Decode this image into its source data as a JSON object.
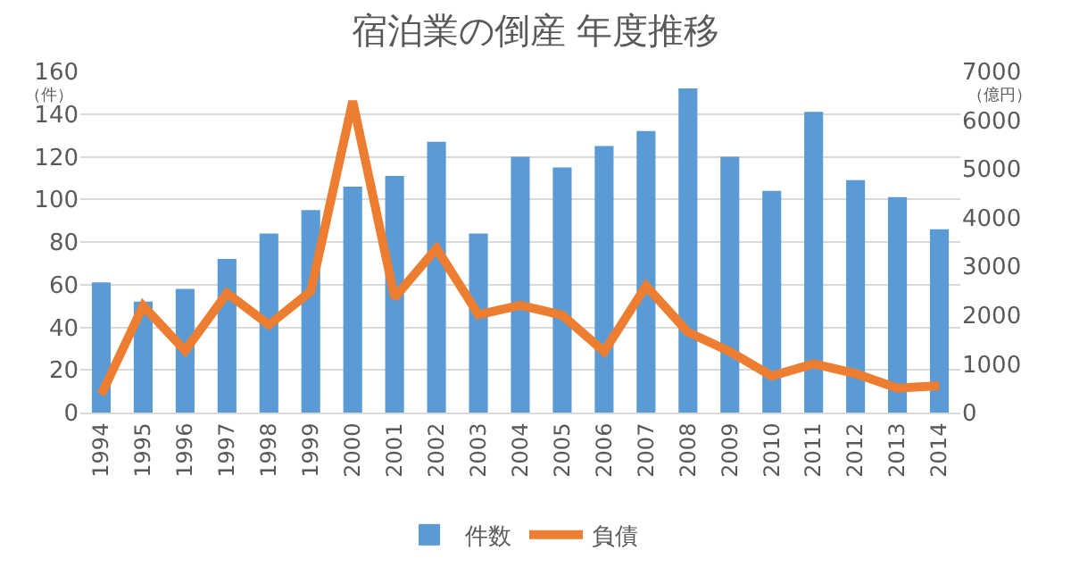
{
  "chart_data": {
    "type": "bar",
    "title": "宿泊業の倒産 年度推移",
    "ylabel": "（件）",
    "y2label": "（億円）",
    "categories": [
      "1994",
      "1995",
      "1996",
      "1997",
      "1998",
      "1999",
      "2000",
      "2001",
      "2002",
      "2003",
      "2004",
      "2005",
      "2006",
      "2007",
      "2008",
      "2009",
      "2010",
      "2011",
      "2012",
      "2013",
      "2014"
    ],
    "series": [
      {
        "name": "件数",
        "color": "#5b9bd5",
        "values": [
          61,
          52,
          58,
          72,
          84,
          95,
          106,
          111,
          127,
          84,
          120,
          115,
          125,
          132,
          152,
          120,
          104,
          141,
          109,
          101,
          86
        ]
      },
      {
        "name": "負債",
        "type": "line",
        "axis": "y2",
        "color": "#ed7d31",
        "values": [
          370,
          2190,
          1270,
          2450,
          1800,
          2490,
          6390,
          2360,
          3370,
          2010,
          2200,
          2000,
          1250,
          2600,
          1650,
          1250,
          750,
          1000,
          800,
          500,
          550
        ]
      }
    ],
    "ylim": [
      0,
      160
    ],
    "yticks": [
      0,
      20,
      40,
      60,
      80,
      100,
      120,
      140,
      160
    ],
    "y2lim": [
      0,
      7000
    ],
    "y2ticks": [
      0,
      1000,
      2000,
      3000,
      4000,
      5000,
      6000,
      7000
    ],
    "grid": "y",
    "legend": "bottom",
    "marker": "none",
    "line_style": "solid"
  }
}
